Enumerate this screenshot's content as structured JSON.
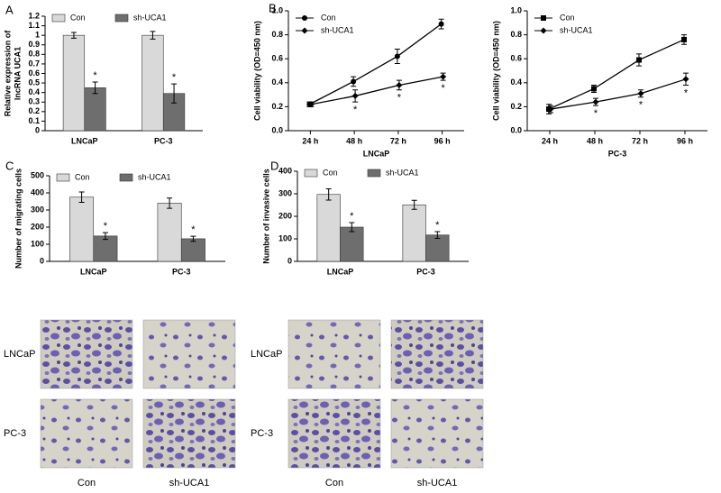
{
  "panel_letters": [
    "A",
    "B",
    "C",
    "D"
  ],
  "chart_data": [
    {
      "type": "bar",
      "categories": [
        "LNCaP",
        "PC-3"
      ],
      "ylabel": [
        "Relative expression of",
        "lncRNA UCA1"
      ],
      "ylim": [
        0,
        1.2
      ],
      "yticks": [
        0,
        0.1,
        0.2,
        0.3,
        0.4,
        0.5,
        0.6,
        0.7,
        0.8,
        0.9,
        1,
        1.1,
        1.2
      ],
      "series": [
        {
          "name": "Con",
          "color": "#d9d9d9",
          "values": [
            1.0,
            1.0
          ],
          "errors": [
            0.03,
            0.04
          ]
        },
        {
          "name": "sh-UCA1",
          "color": "#6e6e6e",
          "values": [
            0.45,
            0.39
          ],
          "errors": [
            0.06,
            0.1
          ]
        }
      ],
      "annotations": [
        {
          "text": "*",
          "series": "sh-UCA1",
          "category": "LNCaP"
        },
        {
          "text": "*",
          "series": "sh-UCA1",
          "category": "PC-3"
        }
      ]
    },
    {
      "type": "line",
      "categories": [
        "24 h",
        "48 h",
        "72 h",
        "96 h"
      ],
      "xlabel": "LNCaP",
      "ylabel": [
        "Cell viability (OD=450 nm)"
      ],
      "ylim": [
        0,
        1.0
      ],
      "yticks": [
        {
          "value": 0,
          "label": "0.0"
        },
        {
          "value": 0.2,
          "label": "0.2"
        },
        {
          "value": 0.4,
          "label": "0.4"
        },
        {
          "value": 0.6,
          "label": "0.6"
        },
        {
          "value": 0.8,
          "label": "0.8"
        },
        {
          "value": 1.0,
          "label": "1.0"
        }
      ],
      "series": [
        {
          "name": "Con",
          "color": "#000000",
          "marker": "circle",
          "values": [
            0.22,
            0.41,
            0.62,
            0.89
          ],
          "errors": [
            0.02,
            0.04,
            0.06,
            0.04
          ]
        },
        {
          "name": "sh-UCA1",
          "color": "#000000",
          "marker": "diamond",
          "values": [
            0.22,
            0.29,
            0.38,
            0.45
          ],
          "errors": [
            0.02,
            0.05,
            0.04,
            0.03
          ]
        }
      ],
      "annotations": [
        {
          "text": "*",
          "series": "sh-UCA1",
          "category": "48 h"
        },
        {
          "text": "*",
          "series": "sh-UCA1",
          "category": "72 h"
        },
        {
          "text": "*",
          "series": "sh-UCA1",
          "category": "96 h"
        }
      ]
    },
    {
      "type": "line",
      "categories": [
        "24 h",
        "48 h",
        "72 h",
        "96 h"
      ],
      "xlabel": "PC-3",
      "ylabel": [
        "Cell viability (OD=450 nm)"
      ],
      "ylim": [
        0,
        1.0
      ],
      "yticks": [
        {
          "value": 0,
          "label": "0.0"
        },
        {
          "value": 0.2,
          "label": "0.2"
        },
        {
          "value": 0.4,
          "label": "0.4"
        },
        {
          "value": 0.6,
          "label": "0.6"
        },
        {
          "value": 0.8,
          "label": "0.8"
        },
        {
          "value": 1.0,
          "label": "1.0"
        }
      ],
      "series": [
        {
          "name": "Con",
          "color": "#000000",
          "marker": "square",
          "values": [
            0.18,
            0.35,
            0.59,
            0.76
          ],
          "errors": [
            0.04,
            0.03,
            0.05,
            0.04
          ]
        },
        {
          "name": "sh-UCA1",
          "color": "#000000",
          "marker": "diamond",
          "values": [
            0.18,
            0.24,
            0.31,
            0.43
          ],
          "errors": [
            0.03,
            0.03,
            0.03,
            0.05
          ]
        }
      ],
      "annotations": [
        {
          "text": "*",
          "series": "sh-UCA1",
          "category": "48 h"
        },
        {
          "text": "*",
          "series": "sh-UCA1",
          "category": "72 h"
        },
        {
          "text": "*",
          "series": "sh-UCA1",
          "category": "96 h"
        }
      ]
    },
    {
      "type": "bar",
      "categories": [
        "LNCaP",
        "PC-3"
      ],
      "ylabel": [
        "Number of migrating cells"
      ],
      "ylim": [
        0,
        500
      ],
      "yticks": [
        0,
        100,
        200,
        300,
        400,
        500
      ],
      "series": [
        {
          "name": "Con",
          "color": "#d9d9d9",
          "values": [
            375,
            340
          ],
          "errors": [
            30,
            30
          ]
        },
        {
          "name": "sh-UCA1",
          "color": "#6e6e6e",
          "values": [
            148,
            132
          ],
          "errors": [
            20,
            15
          ]
        }
      ],
      "annotations": [
        {
          "text": "*",
          "series": "sh-UCA1",
          "category": "LNCaP"
        },
        {
          "text": "*",
          "series": "sh-UCA1",
          "category": "PC-3"
        }
      ]
    },
    {
      "type": "bar",
      "categories": [
        "LNCaP",
        "PC-3"
      ],
      "ylabel": [
        "Number of invasive cells"
      ],
      "ylim": [
        0,
        400
      ],
      "yticks": [
        0,
        100,
        200,
        300,
        400
      ],
      "series": [
        {
          "name": "Con",
          "color": "#d9d9d9",
          "values": [
            297,
            251
          ],
          "errors": [
            25,
            20
          ]
        },
        {
          "name": "sh-UCA1",
          "color": "#6e6e6e",
          "values": [
            152,
            117
          ],
          "errors": [
            20,
            15
          ]
        }
      ],
      "annotations": [
        {
          "text": "*",
          "series": "sh-UCA1",
          "category": "LNCaP"
        },
        {
          "text": "*",
          "series": "sh-UCA1",
          "category": "PC-3"
        }
      ]
    }
  ],
  "micrographs": [
    {
      "rows": [
        "LNCaP",
        "PC-3"
      ],
      "columns": [
        "Con",
        "sh-UCA1"
      ]
    },
    {
      "rows": [
        "LNCaP",
        "PC-3"
      ],
      "columns": [
        "Con",
        "sh-UCA1"
      ]
    }
  ]
}
